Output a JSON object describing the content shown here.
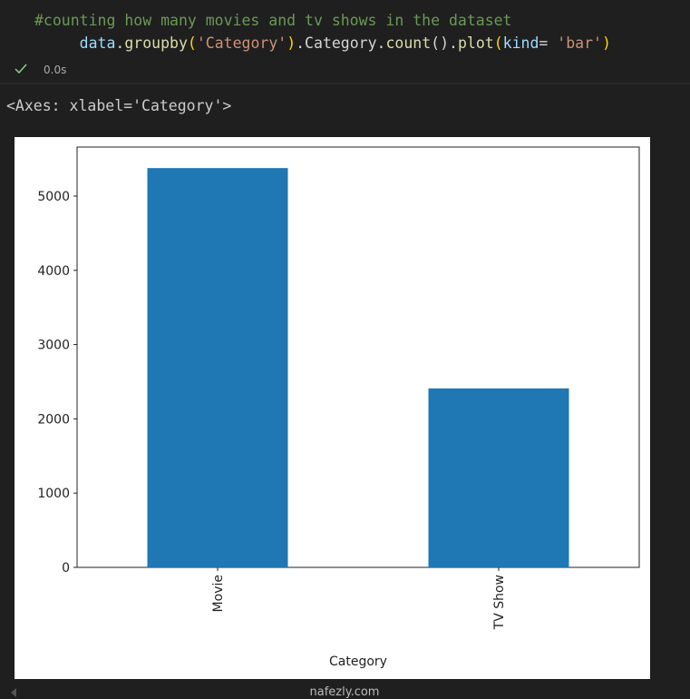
{
  "notebook": {
    "comment": "#counting how many movies and tv shows in the dataset",
    "code_tokens": [
      "data",
      ".",
      "groupby",
      "(",
      "'Category'",
      ")",
      ".Category.",
      "count",
      "().",
      "plot",
      "(",
      "kind",
      "= ",
      "'bar'",
      ")"
    ],
    "status": "0.0s",
    "output_text": "<Axes: xlabel='Category'>",
    "watermark": "nafezly.com"
  },
  "chart_data": {
    "type": "bar",
    "xlabel": "Category",
    "categories": [
      "Movie",
      "TV Show"
    ],
    "values": [
      5377,
      2410
    ],
    "color": "#1f77b4",
    "ylim": [
      0,
      5660
    ],
    "yticks": [
      0,
      1000,
      2000,
      3000,
      4000,
      5000
    ],
    "grid": false
  }
}
